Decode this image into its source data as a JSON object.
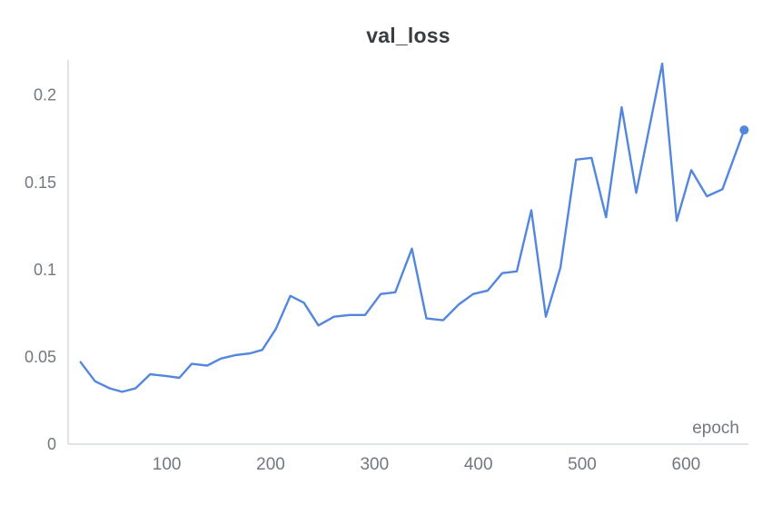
{
  "page": {
    "background": "#ffffff"
  },
  "chart_data": {
    "type": "line",
    "title": "val_loss",
    "xlabel": "epoch",
    "ylabel": "",
    "grid": false,
    "legend": "none",
    "end_marker": true,
    "axis_color": "#ccd3da",
    "tick_color": "#72787e",
    "title_color": "#383d42",
    "xlim": [
      5,
      660
    ],
    "ylim": [
      0,
      0.217
    ],
    "xticks": [
      100,
      200,
      300,
      400,
      500,
      600
    ],
    "xtick_labels": [
      "100",
      "200",
      "300",
      "400",
      "500",
      "600"
    ],
    "yticks": [
      0,
      0.05,
      0.1,
      0.15,
      0.2
    ],
    "ytick_labels": [
      "0",
      "0.05",
      "0.1",
      "0.15",
      "0.2"
    ],
    "series": [
      {
        "name": "val_loss",
        "color": "#5387dd",
        "points": [
          [
            17,
            0.047
          ],
          [
            31,
            0.036
          ],
          [
            45,
            0.032
          ],
          [
            57,
            0.03
          ],
          [
            70,
            0.032
          ],
          [
            84,
            0.04
          ],
          [
            100,
            0.039
          ],
          [
            112,
            0.038
          ],
          [
            124,
            0.046
          ],
          [
            139,
            0.045
          ],
          [
            152,
            0.049
          ],
          [
            166,
            0.051
          ],
          [
            180,
            0.052
          ],
          [
            192,
            0.054
          ],
          [
            205,
            0.066
          ],
          [
            219,
            0.085
          ],
          [
            232,
            0.081
          ],
          [
            246,
            0.068
          ],
          [
            261,
            0.073
          ],
          [
            276,
            0.074
          ],
          [
            291,
            0.074
          ],
          [
            306,
            0.086
          ],
          [
            320,
            0.087
          ],
          [
            336,
            0.112
          ],
          [
            350,
            0.072
          ],
          [
            366,
            0.071
          ],
          [
            381,
            0.08
          ],
          [
            395,
            0.086
          ],
          [
            409,
            0.088
          ],
          [
            423,
            0.098
          ],
          [
            437,
            0.099
          ],
          [
            451,
            0.134
          ],
          [
            465,
            0.073
          ],
          [
            479,
            0.101
          ],
          [
            494,
            0.163
          ],
          [
            509,
            0.164
          ],
          [
            523,
            0.13
          ],
          [
            538,
            0.193
          ],
          [
            552,
            0.144
          ],
          [
            577,
            0.218
          ],
          [
            591,
            0.128
          ],
          [
            605,
            0.157
          ],
          [
            620,
            0.142
          ],
          [
            635,
            0.146
          ],
          [
            656,
            0.18
          ]
        ]
      }
    ]
  }
}
